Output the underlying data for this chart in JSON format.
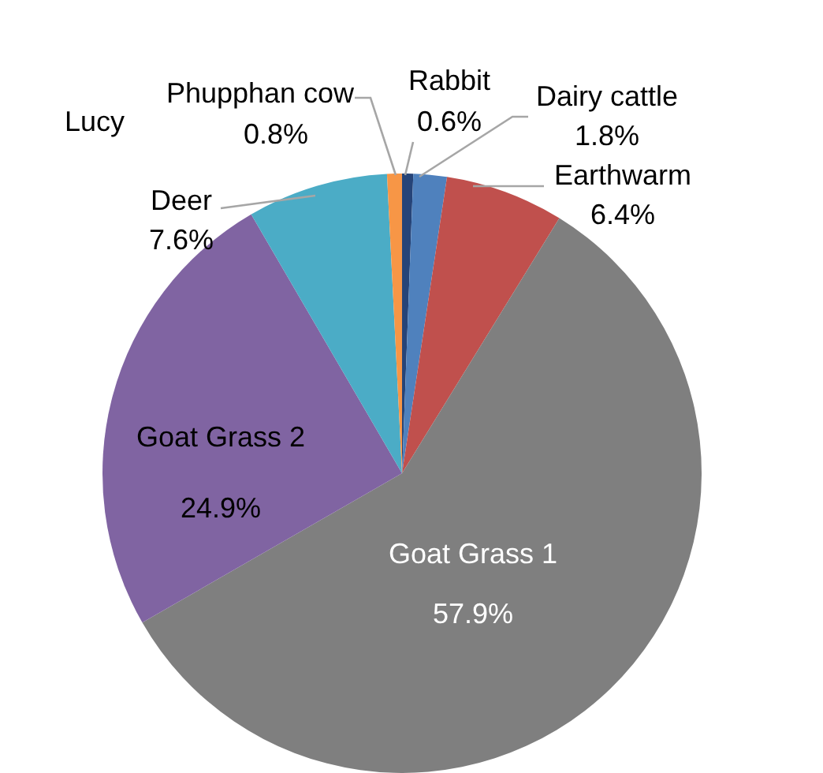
{
  "chart_data": {
    "type": "pie",
    "categories": [
      "Rabbit",
      "Dairy cattle",
      "Earthwarm",
      "Goat Grass 1",
      "Goat Grass 2",
      "Deer",
      "Lucy",
      "Phupphan cow"
    ],
    "values": [
      0.6,
      1.8,
      6.4,
      57.9,
      24.9,
      7.6,
      0,
      0.8
    ],
    "colors": [
      "#264478",
      "#4f81bd",
      "#c0504d",
      "#7f7f7f",
      "#8064a2",
      "#4bacc6",
      "#9bbb59",
      "#f79646"
    ],
    "value_labels": [
      "0.6%",
      "1.8%",
      "6.4%",
      "57.9%",
      "24.9%",
      "7.6%",
      null,
      "0.8%"
    ],
    "legend": false
  }
}
